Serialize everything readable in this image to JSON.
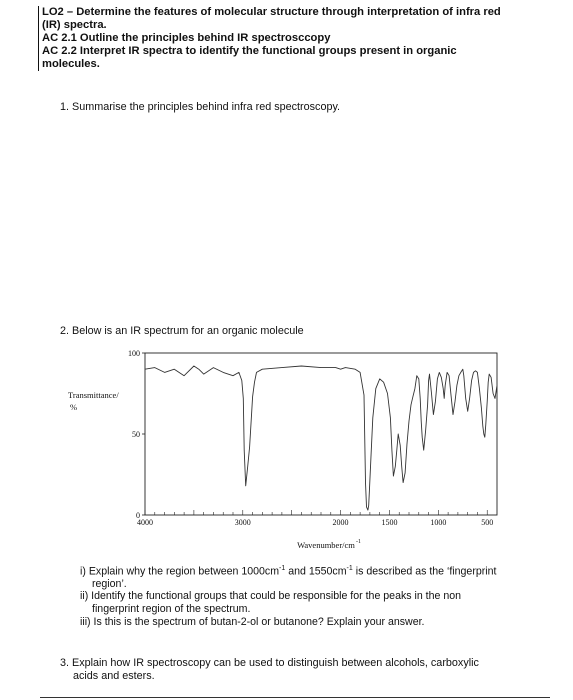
{
  "header": {
    "line1": "LO2 – Determine the features of molecular structure through interpretation of infra red",
    "line2": "(IR) spectra.",
    "line3": "AC 2.1 Outline the principles behind IR spectrosccopy",
    "line4": "AC 2.2 Interpret IR spectra to identify the functional groups present in organic",
    "line5": "molecules."
  },
  "questions": {
    "q1": "1. Summarise the principles behind infra red spectroscopy.",
    "q2": "2. Below is an IR spectrum for an organic molecule",
    "q2_i_a": "i) Explain why the region between 1000cm",
    "q2_i_b": " and 1550cm",
    "q2_i_c": " is described as the ‘fingerprint",
    "q2_i_d": "region’.",
    "q2_i_sup": "-1",
    "q2_ii_a": "ii) Identify the functional groups that could be responsible for the peaks in the non",
    "q2_ii_b": "fingerprint region of the spectrum.",
    "q2_iii": "iii) Is this is the spectrum of butan-2-ol or butanone? Explain your answer.",
    "q3_a": "3. Explain how IR spectroscopy can be used to distinguish between alcohols, carboxylic",
    "q3_b": "acids and esters."
  },
  "chart_data": {
    "type": "line",
    "ylabel": "Transmittance/ %",
    "xlabel": "Wavenumber/cm",
    "xlabel_sup": "-1",
    "xlim": [
      4000,
      400
    ],
    "ylim": [
      0,
      100
    ],
    "x_ticks": [
      4000,
      3000,
      2000,
      1500,
      1000,
      500
    ],
    "x_tick_labels": [
      "4000",
      "3000",
      "2000",
      "1500",
      "1000",
      "500"
    ],
    "y_ticks": [
      0,
      50,
      100
    ],
    "y_tick_labels": [
      "0",
      "50",
      "100"
    ],
    "x": [
      4000,
      3900,
      3800,
      3700,
      3600,
      3500,
      3450,
      3400,
      3300,
      3200,
      3100,
      3040,
      3010,
      2995,
      2985,
      2970,
      2950,
      2930,
      2900,
      2880,
      2860,
      2800,
      2600,
      2400,
      2200,
      2050,
      2000,
      1950,
      1850,
      1800,
      1760,
      1745,
      1735,
      1720,
      1712,
      1705,
      1690,
      1670,
      1640,
      1600,
      1560,
      1520,
      1490,
      1475,
      1460,
      1440,
      1425,
      1410,
      1390,
      1375,
      1360,
      1340,
      1320,
      1300,
      1280,
      1260,
      1240,
      1220,
      1200,
      1185,
      1175,
      1165,
      1150,
      1130,
      1110,
      1100,
      1090,
      1070,
      1050,
      1030,
      1010,
      990,
      970,
      950,
      940,
      930,
      910,
      890,
      870,
      850,
      830,
      810,
      790,
      770,
      760,
      750,
      740,
      720,
      700,
      680,
      660,
      640,
      620,
      600,
      580,
      560,
      545,
      535,
      525,
      515,
      500,
      490,
      480,
      460,
      440,
      420,
      400
    ],
    "y": [
      90,
      91,
      88,
      90,
      86,
      92,
      90,
      87,
      91,
      88,
      86,
      88,
      83,
      72,
      40,
      18,
      30,
      42,
      73,
      82,
      88,
      90,
      91,
      92,
      91,
      91,
      90,
      91,
      90,
      88,
      74,
      20,
      5,
      3,
      6,
      15,
      35,
      60,
      78,
      84,
      82,
      75,
      60,
      40,
      24,
      30,
      40,
      50,
      43,
      30,
      20,
      26,
      44,
      58,
      68,
      73,
      78,
      86,
      84,
      72,
      58,
      48,
      40,
      52,
      68,
      83,
      87,
      75,
      62,
      70,
      84,
      88,
      85,
      78,
      72,
      80,
      88,
      86,
      74,
      62,
      70,
      80,
      86,
      88,
      89,
      90,
      86,
      72,
      64,
      72,
      83,
      88,
      89,
      88,
      78,
      66,
      55,
      50,
      48,
      56,
      70,
      82,
      87,
      85,
      75,
      72,
      80
    ]
  }
}
